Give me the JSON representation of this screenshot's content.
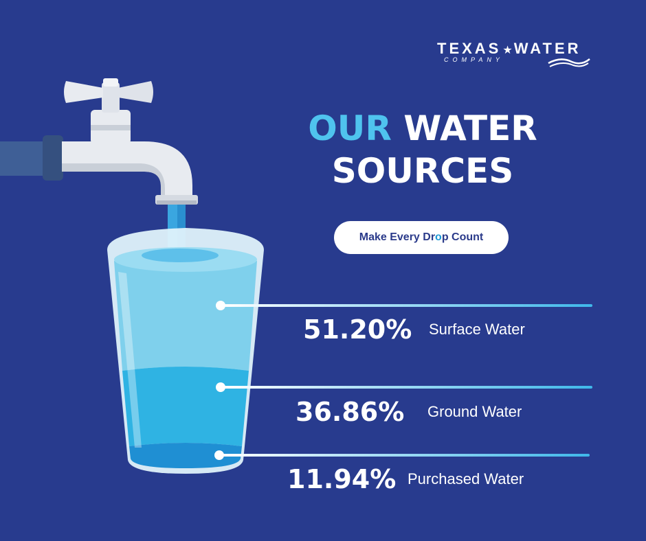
{
  "logo": {
    "name_left": "TEXAS",
    "name_right": "WATER",
    "subtitle": "COMPANY"
  },
  "title": {
    "accent": "OUR",
    "line1_rest": " WATER",
    "line2": "SOURCES"
  },
  "badge": {
    "text_before": "Make Every Dr",
    "text_drop": "o",
    "text_after": "p Count"
  },
  "sources": [
    {
      "percent": "51.20%",
      "label": "Surface Water"
    },
    {
      "percent": "36.86%",
      "label": "Ground Water"
    },
    {
      "percent": "11.94%",
      "label": "Purchased Water"
    }
  ],
  "colors": {
    "background": "#283b8e",
    "accent": "#4fc3ee",
    "text": "#ffffff",
    "water_top": "#7fd0ec",
    "water_mid": "#2fb3e3",
    "water_bottom": "#1f8fd3"
  },
  "icons": [
    "faucet-icon",
    "glass-of-water-icon",
    "texas-star-icon",
    "wave-icon",
    "water-drop-icon"
  ]
}
